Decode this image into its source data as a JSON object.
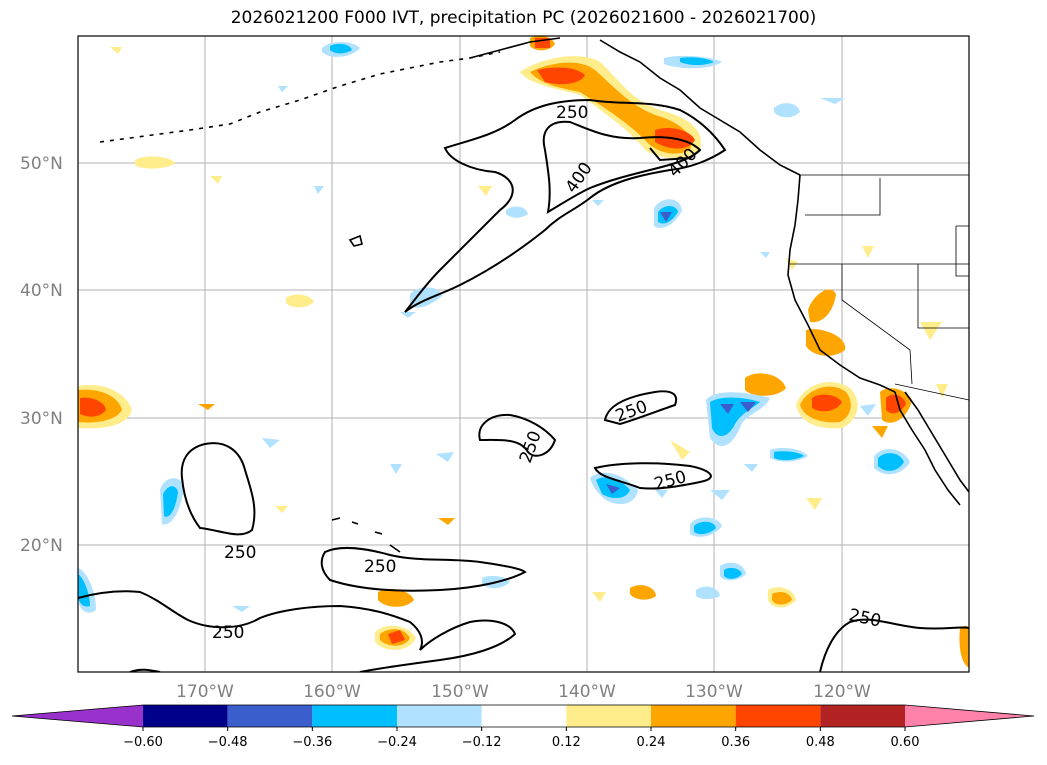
{
  "title": "2026021200 F000 IVT, precipitation PC (2026021600 - 2026021700)",
  "map": {
    "lat_labels": [
      "50°N",
      "40°N",
      "30°N",
      "20°N"
    ],
    "lon_labels": [
      "170°W",
      "160°W",
      "150°W",
      "140°W",
      "130°W",
      "120°W"
    ],
    "contour_labels": [
      "250",
      "400",
      "400",
      "250",
      "250",
      "250",
      "250",
      "250",
      "250"
    ],
    "contour_unit_levels": [
      250,
      400
    ]
  },
  "colorbar": {
    "colors": [
      "#9932cc",
      "#00008b",
      "#3a5fcd",
      "#00bfff",
      "#b0e2ff",
      "#ffffff",
      "#ffec8b",
      "#ffa500",
      "#ff4500",
      "#b22222",
      "#ff82ab"
    ],
    "tick_labels": [
      "−0.60",
      "−0.48",
      "−0.36",
      "−0.24",
      "−0.12",
      "0.12",
      "0.24",
      "0.36",
      "0.48",
      "0.60"
    ]
  },
  "colors": {
    "grid": "#b0b0b0",
    "coast": "#000000",
    "contour": "#000000"
  }
}
